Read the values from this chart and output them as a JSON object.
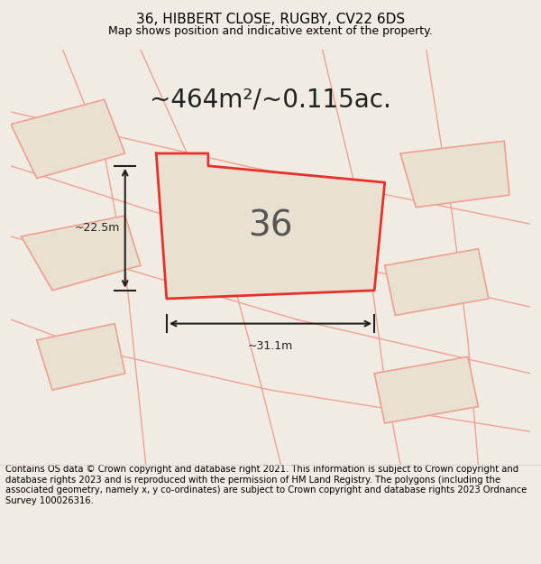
{
  "title": "36, HIBBERT CLOSE, RUGBY, CV22 6DS",
  "subtitle": "Map shows position and indicative extent of the property.",
  "area_text": "~464m²/~0.115ac.",
  "number_label": "36",
  "dim_width": "~31.1m",
  "dim_height": "~22.5m",
  "footer": "Contains OS data © Crown copyright and database right 2021. This information is subject to Crown copyright and database rights 2023 and is reproduced with the permission of HM Land Registry. The polygons (including the associated geometry, namely x, y co-ordinates) are subject to Crown copyright and database rights 2023 Ordnance Survey 100026316.",
  "bg_color": "#f0ece4",
  "map_bg": "#f0ece4",
  "plot_fill": "#e8e0d0",
  "plot_edge": "#e8302a",
  "neighbor_fill": "#e8e0d0",
  "neighbor_edge": "#f0a090",
  "line_color": "#f0a090",
  "title_fontsize": 11,
  "subtitle_fontsize": 9,
  "area_fontsize": 20,
  "number_fontsize": 28,
  "footer_fontsize": 7.2
}
